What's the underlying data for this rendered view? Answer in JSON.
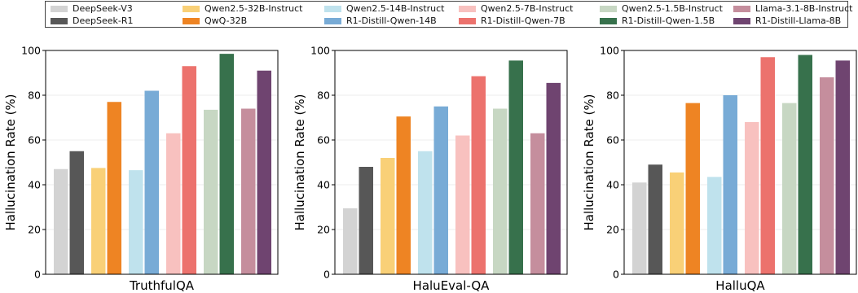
{
  "legend": {
    "placement": "top",
    "entries": [
      {
        "name": "DeepSeek-V3",
        "color": "#d3d3d3"
      },
      {
        "name": "DeepSeek-R1",
        "color": "#575757"
      },
      {
        "name": "Qwen2.5-32B-Instruct",
        "color": "#f9d077"
      },
      {
        "name": "QwQ-32B",
        "color": "#ee8423"
      },
      {
        "name": "Qwen2.5-14B-Instruct",
        "color": "#bfe2ed"
      },
      {
        "name": "R1-Distill-Qwen-14B",
        "color": "#78abd6"
      },
      {
        "name": "Qwen2.5-7B-Instruct",
        "color": "#f8c1bf"
      },
      {
        "name": "R1-Distill-Qwen-7B",
        "color": "#ec726d"
      },
      {
        "name": "Qwen2.5-1.5B-Instruct",
        "color": "#c7d7c3"
      },
      {
        "name": "R1-Distill-Qwen-1.5B",
        "color": "#37714c"
      },
      {
        "name": "Llama-3.1-8B-Instruct",
        "color": "#c58e9d"
      },
      {
        "name": "R1-Distill-Llama-8B",
        "color": "#6f4470"
      }
    ]
  },
  "chart_data": [
    {
      "type": "bar",
      "xlabel": "TruthfulQA",
      "ylabel": "Hallucination Rate (%)",
      "ylim": [
        0,
        100
      ],
      "yticks": [
        0,
        20,
        40,
        60,
        80,
        100
      ],
      "grid": true,
      "categories": [
        "DeepSeek-V3",
        "DeepSeek-R1",
        "Qwen2.5-32B-Instruct",
        "QwQ-32B",
        "Qwen2.5-14B-Instruct",
        "R1-Distill-Qwen-14B",
        "Qwen2.5-7B-Instruct",
        "R1-Distill-Qwen-7B",
        "Qwen2.5-1.5B-Instruct",
        "R1-Distill-Qwen-1.5B",
        "Llama-3.1-8B-Instruct",
        "R1-Distill-Llama-8B"
      ],
      "values": [
        47,
        55,
        47.5,
        77,
        46.5,
        82,
        63,
        93,
        73.5,
        98.5,
        74,
        91
      ]
    },
    {
      "type": "bar",
      "xlabel": "HaluEval-QA",
      "ylabel": "Hallucination Rate (%)",
      "ylim": [
        0,
        100
      ],
      "yticks": [
        0,
        20,
        40,
        60,
        80,
        100
      ],
      "grid": true,
      "categories": [
        "DeepSeek-V3",
        "DeepSeek-R1",
        "Qwen2.5-32B-Instruct",
        "QwQ-32B",
        "Qwen2.5-14B-Instruct",
        "R1-Distill-Qwen-14B",
        "Qwen2.5-7B-Instruct",
        "R1-Distill-Qwen-7B",
        "Qwen2.5-1.5B-Instruct",
        "R1-Distill-Qwen-1.5B",
        "Llama-3.1-8B-Instruct",
        "R1-Distill-Llama-8B"
      ],
      "values": [
        29.5,
        48,
        52,
        70.5,
        55,
        75,
        62,
        88.5,
        74,
        95.5,
        63,
        85.5
      ]
    },
    {
      "type": "bar",
      "xlabel": "HalluQA",
      "ylabel": "Hallucination Rate (%)",
      "ylim": [
        0,
        100
      ],
      "yticks": [
        0,
        20,
        40,
        60,
        80,
        100
      ],
      "grid": true,
      "categories": [
        "DeepSeek-V3",
        "DeepSeek-R1",
        "Qwen2.5-32B-Instruct",
        "QwQ-32B",
        "Qwen2.5-14B-Instruct",
        "R1-Distill-Qwen-14B",
        "Qwen2.5-7B-Instruct",
        "R1-Distill-Qwen-7B",
        "Qwen2.5-1.5B-Instruct",
        "R1-Distill-Qwen-1.5B",
        "Llama-3.1-8B-Instruct",
        "R1-Distill-Llama-8B"
      ],
      "values": [
        41,
        49,
        45.5,
        76.5,
        43.5,
        80,
        68,
        97,
        76.5,
        98,
        88,
        95.5
      ]
    }
  ]
}
